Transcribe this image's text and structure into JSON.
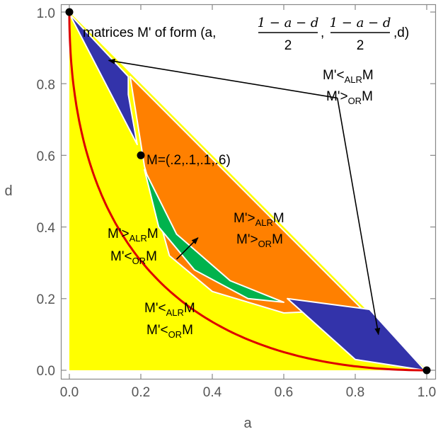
{
  "chart_data": {
    "type": "area",
    "title": "",
    "xlabel": "a",
    "ylabel": "d",
    "xlim": [
      0,
      1
    ],
    "ylim": [
      0,
      1
    ],
    "x_ticks": [
      "0.0",
      "0.2",
      "0.4",
      "0.6",
      "0.8",
      "1.0"
    ],
    "y_ticks": [
      "0.0",
      "0.2",
      "0.4",
      "0.6",
      "0.8",
      "1.0"
    ],
    "grid": false,
    "colors": {
      "yellow_region": "#ffff00",
      "orange_region": "#ff8000",
      "green_region": "#00b34d",
      "blue_region": "#3333aa",
      "curve": "#dd0000",
      "gap": "#ffffff"
    },
    "curve": "boundary curve (sqrt(a) + sqrt(d) = 1)",
    "points": [
      {
        "a": 0.0,
        "d": 1.0
      },
      {
        "a": 0.2,
        "d": 0.6
      },
      {
        "a": 1.0,
        "d": 0.0
      }
    ],
    "regions": [
      {
        "name": "yellow",
        "polygon": [
          [
            0,
            1
          ],
          [
            0,
            0
          ],
          [
            1,
            0
          ]
        ]
      },
      {
        "name": "blue-upper",
        "polygon": [
          [
            0,
            0.995
          ],
          [
            0.165,
            0.82
          ],
          [
            0.165,
            0.77
          ],
          [
            0.19,
            0.63
          ]
        ]
      },
      {
        "name": "orange",
        "polygon": [
          [
            0.17,
            0.82
          ],
          [
            0.82,
            0.17
          ],
          [
            0.6,
            0.16
          ],
          [
            0.4,
            0.22
          ],
          [
            0.28,
            0.32
          ],
          [
            0.21,
            0.57
          ]
        ]
      },
      {
        "name": "green",
        "polygon": [
          [
            0.21,
            0.56
          ],
          [
            0.3,
            0.38
          ],
          [
            0.45,
            0.25
          ],
          [
            0.6,
            0.19
          ],
          [
            0.5,
            0.2
          ],
          [
            0.35,
            0.28
          ],
          [
            0.25,
            0.4
          ]
        ]
      },
      {
        "name": "blue-lower",
        "polygon": [
          [
            0.61,
            0.2
          ],
          [
            0.84,
            0.17
          ],
          [
            0.995,
            0.0
          ],
          [
            0.8,
            0.03
          ]
        ]
      }
    ],
    "annotations": {
      "title_prefix": "matrices M' of form (a,",
      "frac_numer": "1 − a − d",
      "frac_denom": "2",
      "title_sep": ",",
      "title_suffix": ",d)",
      "point_label": "M=(.2,.1,.1,.6)",
      "label_alr_lt": "M'<",
      "label_alr_gt": "M'>",
      "label_or_lt": "M'<",
      "label_or_gt": "M'>",
      "sub_alr": "ALR",
      "sub_or": "OR",
      "suffix_m": "M"
    },
    "arrows": [
      {
        "from": [
          0.75,
          0.76
        ],
        "to": [
          0.11,
          0.865
        ]
      },
      {
        "from": [
          0.75,
          0.76
        ],
        "to": [
          0.865,
          0.1
        ]
      },
      {
        "from": [
          0.3,
          0.31
        ],
        "to": [
          0.36,
          0.37
        ]
      }
    ]
  }
}
